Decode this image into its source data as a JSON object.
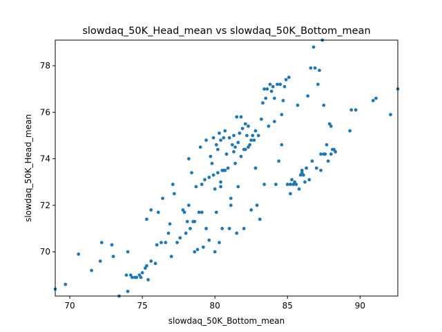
{
  "chart_data": {
    "type": "scatter",
    "title": "slowdaq_50K_Head_mean vs slowdaq_50K_Bottom_mean",
    "xlabel": "slowdaq_50K_Bottom_mean",
    "ylabel": "slowdaq_50K_Head_mean",
    "xlim": [
      69.0,
      92.6
    ],
    "ylim": [
      68.1,
      79.1
    ],
    "xticks": [
      70,
      75,
      80,
      85,
      90
    ],
    "yticks": [
      70,
      72,
      74,
      76,
      78
    ],
    "grid": false,
    "marker_color": "#1f77b4",
    "points": [
      [
        69.0,
        68.4
      ],
      [
        69.7,
        68.6
      ],
      [
        70.6,
        69.9
      ],
      [
        71.5,
        69.2
      ],
      [
        72.1,
        69.6
      ],
      [
        72.2,
        70.4
      ],
      [
        72.9,
        70.3
      ],
      [
        73.0,
        69.8
      ],
      [
        73.4,
        68.1
      ],
      [
        73.9,
        69.0
      ],
      [
        74.0,
        68.3
      ],
      [
        74.0,
        70.0
      ],
      [
        74.2,
        69.0
      ],
      [
        74.3,
        68.9
      ],
      [
        74.5,
        68.9
      ],
      [
        74.6,
        68.9
      ],
      [
        74.8,
        69.0
      ],
      [
        74.9,
        68.9
      ],
      [
        75.0,
        69.1
      ],
      [
        75.2,
        69.3
      ],
      [
        75.3,
        69.4
      ],
      [
        75.4,
        68.8
      ],
      [
        75.6,
        69.6
      ],
      [
        75.9,
        69.5
      ],
      [
        75.3,
        71.4
      ],
      [
        75.6,
        71.8
      ],
      [
        76.0,
        70.3
      ],
      [
        76.1,
        71.7
      ],
      [
        76.3,
        70.4
      ],
      [
        76.4,
        72.3
      ],
      [
        76.6,
        70.4
      ],
      [
        76.8,
        70.8
      ],
      [
        76.9,
        71.2
      ],
      [
        77.0,
        69.8
      ],
      [
        77.1,
        72.9
      ],
      [
        77.2,
        72.5
      ],
      [
        77.4,
        70.4
      ],
      [
        77.6,
        70.6
      ],
      [
        77.8,
        71.8
      ],
      [
        77.9,
        71.7
      ],
      [
        78.0,
        70.8
      ],
      [
        78.1,
        71.3
      ],
      [
        78.2,
        72.0
      ],
      [
        78.2,
        74.0
      ],
      [
        78.3,
        71.0
      ],
      [
        78.4,
        73.4
      ],
      [
        78.5,
        71.3
      ],
      [
        78.6,
        71.3
      ],
      [
        78.6,
        70.0
      ],
      [
        78.7,
        72.8
      ],
      [
        78.8,
        70.1
      ],
      [
        78.9,
        71.7
      ],
      [
        79.0,
        74.5
      ],
      [
        79.1,
        72.9
      ],
      [
        79.1,
        71.7
      ],
      [
        79.2,
        70.2
      ],
      [
        79.3,
        73.1
      ],
      [
        79.4,
        74.8
      ],
      [
        79.4,
        71.0
      ],
      [
        79.6,
        73.2
      ],
      [
        79.6,
        70.5
      ],
      [
        79.7,
        74.1
      ],
      [
        79.8,
        73.8
      ],
      [
        79.9,
        73.3
      ],
      [
        79.9,
        74.9
      ],
      [
        80.0,
        72.7
      ],
      [
        80.0,
        70.0
      ],
      [
        80.1,
        74.6
      ],
      [
        80.1,
        71.7
      ],
      [
        80.2,
        74.4
      ],
      [
        80.2,
        73.4
      ],
      [
        80.3,
        70.4
      ],
      [
        80.3,
        75.1
      ],
      [
        80.4,
        74.8
      ],
      [
        80.4,
        73.0
      ],
      [
        80.4,
        72.8
      ],
      [
        80.5,
        73.5
      ],
      [
        80.5,
        71.0
      ],
      [
        80.6,
        74.9
      ],
      [
        80.6,
        73.5
      ],
      [
        80.7,
        75.2
      ],
      [
        80.7,
        73.5
      ],
      [
        80.8,
        74.2
      ],
      [
        80.9,
        73.6
      ],
      [
        81.0,
        74.9
      ],
      [
        81.0,
        71.0
      ],
      [
        81.1,
        72.3
      ],
      [
        81.1,
        72.0
      ],
      [
        81.2,
        74.6
      ],
      [
        81.3,
        74.3
      ],
      [
        81.3,
        75.0
      ],
      [
        81.4,
        74.5
      ],
      [
        81.4,
        73.8
      ],
      [
        81.5,
        75.8
      ],
      [
        81.5,
        70.8
      ],
      [
        81.6,
        74.7
      ],
      [
        81.6,
        72.8
      ],
      [
        81.7,
        75.1
      ],
      [
        81.8,
        75.8
      ],
      [
        81.8,
        74.1
      ],
      [
        81.9,
        75.3
      ],
      [
        82.0,
        74.4
      ],
      [
        82.0,
        71.0
      ],
      [
        82.1,
        74.4
      ],
      [
        82.1,
        75.5
      ],
      [
        82.2,
        75.0
      ],
      [
        82.3,
        74.5
      ],
      [
        82.3,
        75.4
      ],
      [
        82.4,
        74.6
      ],
      [
        82.5,
        74.8
      ],
      [
        82.5,
        71.8
      ],
      [
        82.6,
        75.0
      ],
      [
        82.7,
        74.8
      ],
      [
        82.8,
        73.6
      ],
      [
        82.8,
        75.2
      ],
      [
        82.9,
        72.0
      ],
      [
        83.0,
        75.0
      ],
      [
        83.1,
        71.4
      ],
      [
        83.2,
        75.7
      ],
      [
        83.3,
        76.4
      ],
      [
        83.4,
        72.9
      ],
      [
        83.4,
        77.0
      ],
      [
        83.5,
        76.6
      ],
      [
        83.6,
        77.0
      ],
      [
        83.7,
        75.4
      ],
      [
        83.8,
        77.2
      ],
      [
        83.9,
        76.9
      ],
      [
        84.0,
        77.1
      ],
      [
        84.1,
        76.6
      ],
      [
        84.1,
        75.6
      ],
      [
        84.2,
        72.9
      ],
      [
        84.3,
        77.2
      ],
      [
        84.4,
        73.9
      ],
      [
        84.5,
        77.2
      ],
      [
        84.6,
        74.6
      ],
      [
        84.6,
        75.9
      ],
      [
        84.7,
        76.5
      ],
      [
        84.8,
        77.1
      ],
      [
        84.9,
        77.4
      ],
      [
        85.0,
        72.9
      ],
      [
        85.1,
        77.5
      ],
      [
        85.2,
        72.5
      ],
      [
        85.2,
        72.9
      ],
      [
        85.3,
        73.1
      ],
      [
        85.4,
        72.9
      ],
      [
        85.5,
        73.0
      ],
      [
        85.6,
        72.9
      ],
      [
        85.7,
        76.3
      ],
      [
        85.8,
        72.7
      ],
      [
        85.9,
        73.3
      ],
      [
        86.0,
        73.5
      ],
      [
        86.0,
        73.4
      ],
      [
        86.1,
        73.3
      ],
      [
        86.2,
        73.0
      ],
      [
        86.3,
        73.6
      ],
      [
        86.4,
        76.7
      ],
      [
        86.5,
        73.1
      ],
      [
        86.6,
        77.9
      ],
      [
        86.7,
        73.9
      ],
      [
        86.8,
        78.8
      ],
      [
        86.9,
        77.9
      ],
      [
        87.0,
        73.6
      ],
      [
        87.1,
        77.2
      ],
      [
        87.2,
        77.8
      ],
      [
        87.3,
        73.5
      ],
      [
        87.3,
        74.2
      ],
      [
        87.4,
        79.1
      ],
      [
        87.5,
        74.2
      ],
      [
        87.5,
        76.3
      ],
      [
        87.6,
        74.2
      ],
      [
        87.7,
        74.6
      ],
      [
        87.8,
        73.9
      ],
      [
        87.9,
        75.5
      ],
      [
        88.0,
        74.2
      ],
      [
        88.1,
        74.4
      ],
      [
        88.2,
        74.4
      ],
      [
        88.3,
        74.3
      ],
      [
        88.0,
        75.4
      ],
      [
        89.3,
        75.2
      ],
      [
        89.4,
        76.1
      ],
      [
        89.7,
        76.1
      ],
      [
        90.9,
        76.5
      ],
      [
        91.1,
        76.6
      ],
      [
        92.1,
        75.9
      ],
      [
        92.6,
        77.0
      ]
    ]
  }
}
